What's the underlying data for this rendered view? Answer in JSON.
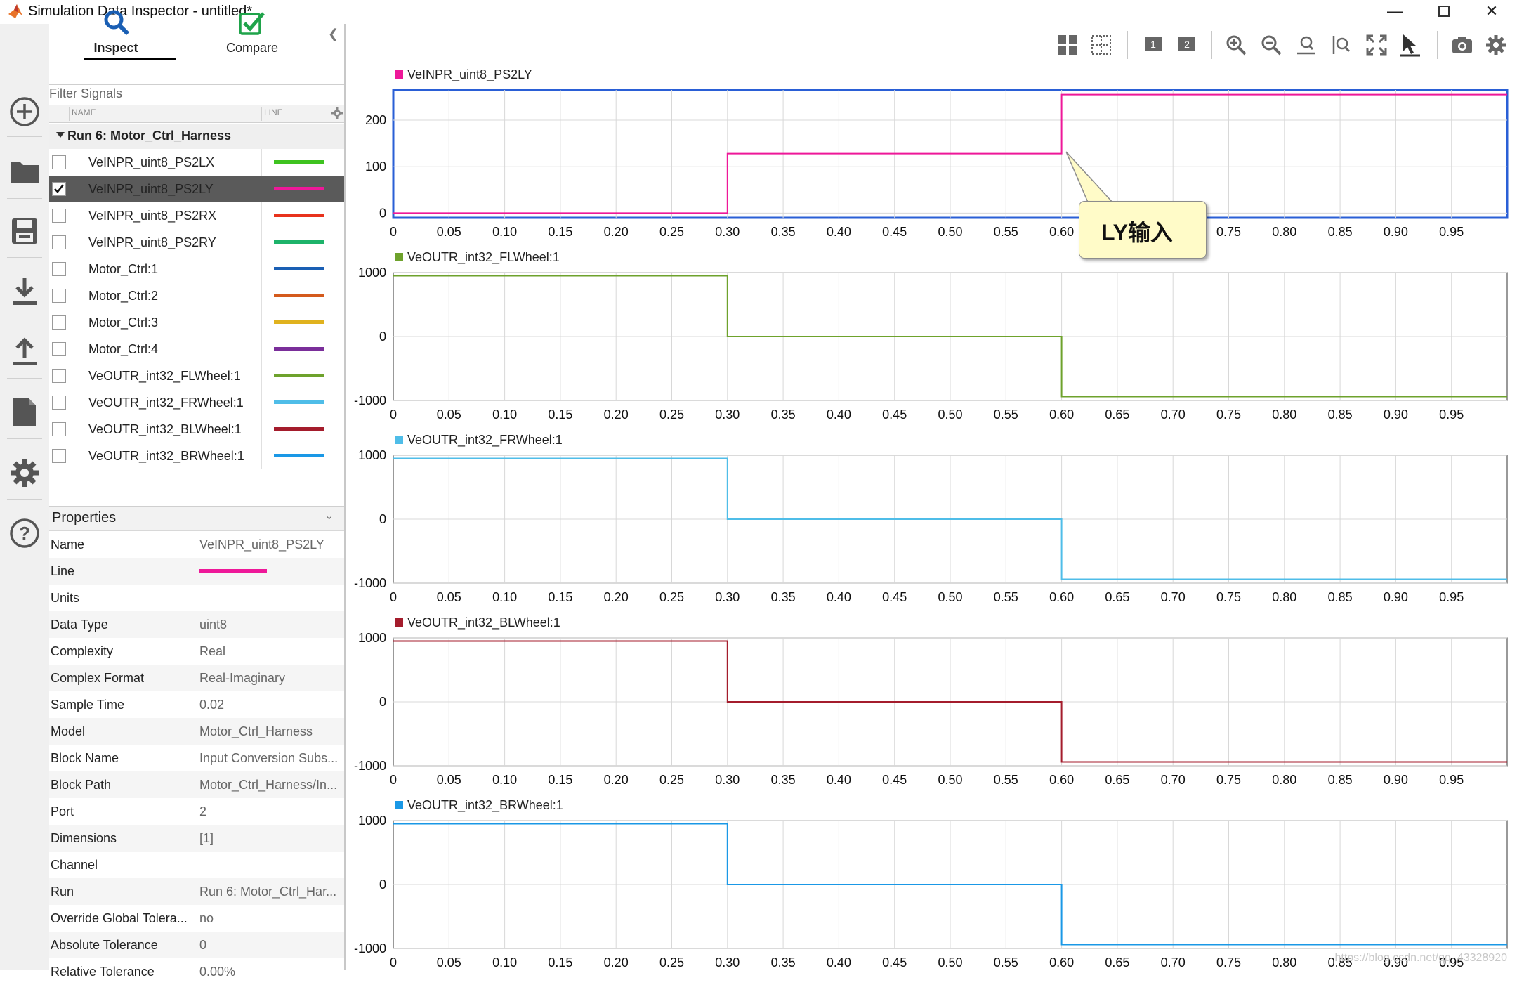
{
  "window": {
    "title": "Simulation Data Inspector - untitled*"
  },
  "tabs": {
    "inspect": "Inspect",
    "compare": "Compare"
  },
  "browser": {
    "filter_placeholder": "Filter Signals",
    "col_name": "NAME",
    "col_line": "LINE",
    "run_label": "Run 6: Motor_Ctrl_Harness",
    "signals": [
      {
        "name": "VeINPR_uint8_PS2LX",
        "color": "#3ec320",
        "checked": false,
        "selected": false
      },
      {
        "name": "VeINPR_uint8_PS2LY",
        "color": "#ee1899",
        "checked": true,
        "selected": true
      },
      {
        "name": "VeINPR_uint8_PS2RX",
        "color": "#e8321c",
        "checked": false,
        "selected": false
      },
      {
        "name": "VeINPR_uint8_PS2RY",
        "color": "#1db36a",
        "checked": false,
        "selected": false
      },
      {
        "name": "Motor_Ctrl:1",
        "color": "#1a5fb4",
        "checked": false,
        "selected": false
      },
      {
        "name": "Motor_Ctrl:2",
        "color": "#d45a1c",
        "checked": false,
        "selected": false
      },
      {
        "name": "Motor_Ctrl:3",
        "color": "#e0b21e",
        "checked": false,
        "selected": false
      },
      {
        "name": "Motor_Ctrl:4",
        "color": "#7a2e9a",
        "checked": false,
        "selected": false
      },
      {
        "name": "VeOUTR_int32_FLWheel:1",
        "color": "#6ea22c",
        "checked": false,
        "selected": false
      },
      {
        "name": "VeOUTR_int32_FRWheel:1",
        "color": "#4fbde8",
        "checked": false,
        "selected": false
      },
      {
        "name": "VeOUTR_int32_BLWheel:1",
        "color": "#a41c2c",
        "checked": false,
        "selected": false
      },
      {
        "name": "VeOUTR_int32_BRWheel:1",
        "color": "#1a98e6",
        "checked": false,
        "selected": false
      }
    ]
  },
  "properties": {
    "title": "Properties",
    "line_color": "#ee1899",
    "rows": [
      {
        "name": "Name",
        "value": "VeINPR_uint8_PS2LY"
      },
      {
        "name": "Line",
        "value": ""
      },
      {
        "name": "Units",
        "value": ""
      },
      {
        "name": "Data Type",
        "value": "uint8"
      },
      {
        "name": "Complexity",
        "value": "Real"
      },
      {
        "name": "Complex Format",
        "value": "Real-Imaginary"
      },
      {
        "name": "Sample Time",
        "value": "0.02"
      },
      {
        "name": "Model",
        "value": "Motor_Ctrl_Harness"
      },
      {
        "name": "Block Name",
        "value": "Input Conversion Subs..."
      },
      {
        "name": "Block Path",
        "value": "Motor_Ctrl_Harness/In..."
      },
      {
        "name": "Port",
        "value": "2"
      },
      {
        "name": "Dimensions",
        "value": "[1]"
      },
      {
        "name": "Channel",
        "value": ""
      },
      {
        "name": "Run",
        "value": "Run 6: Motor_Ctrl_Har..."
      },
      {
        "name": "Override Global Tolera...",
        "value": "no"
      },
      {
        "name": "Absolute Tolerance",
        "value": "0"
      },
      {
        "name": "Relative Tolerance",
        "value": "0.00%"
      }
    ]
  },
  "callout": {
    "text": "LY输入"
  },
  "watermark": "https://blog.csdn.net/qq_43328920",
  "chart_data": [
    {
      "type": "line",
      "title": "VeINPR_uint8_PS2LY",
      "color": "#ee1899",
      "selected": true,
      "ylim": [
        -10,
        265
      ],
      "yticks": [
        0,
        100,
        200
      ],
      "xlim": [
        0,
        1.0
      ],
      "xticks": [
        "0",
        "0.05",
        "0.10",
        "0.15",
        "0.20",
        "0.25",
        "0.30",
        "0.35",
        "0.40",
        "0.45",
        "0.50",
        "0.55",
        "0.60",
        "0.65",
        "0.70",
        "0.75",
        "0.80",
        "0.85",
        "0.90",
        "0.95"
      ],
      "step": {
        "x": [
          0,
          0.3,
          0.3,
          0.6,
          0.6,
          1.0
        ],
        "y": [
          0,
          0,
          128,
          128,
          255,
          255
        ]
      }
    },
    {
      "type": "line",
      "title": "VeOUTR_int32_FLWheel:1",
      "color": "#6ea22c",
      "selected": false,
      "ylim": [
        -1000,
        1000
      ],
      "yticks": [
        -1000,
        0,
        1000
      ],
      "ylabels": [
        "-1000",
        "0",
        "1000"
      ],
      "xlim": [
        0,
        1.0
      ],
      "xticks": [
        "0",
        "0.05",
        "0.10",
        "0.15",
        "0.20",
        "0.25",
        "0.30",
        "0.35",
        "0.40",
        "0.45",
        "0.50",
        "0.55",
        "0.60",
        "0.65",
        "0.70",
        "0.75",
        "0.80",
        "0.85",
        "0.90",
        "0.95"
      ],
      "step": {
        "x": [
          0,
          0.3,
          0.3,
          0.6,
          0.6,
          1.0
        ],
        "y": [
          950,
          950,
          0,
          0,
          -940,
          -940
        ]
      }
    },
    {
      "type": "line",
      "title": "VeOUTR_int32_FRWheel:1",
      "color": "#4fbde8",
      "selected": false,
      "ylim": [
        -1000,
        1000
      ],
      "yticks": [
        -1000,
        0,
        1000
      ],
      "ylabels": [
        "-1000",
        "0",
        "1000"
      ],
      "xlim": [
        0,
        1.0
      ],
      "xticks": [
        "0",
        "0.05",
        "0.10",
        "0.15",
        "0.20",
        "0.25",
        "0.30",
        "0.35",
        "0.40",
        "0.45",
        "0.50",
        "0.55",
        "0.60",
        "0.65",
        "0.70",
        "0.75",
        "0.80",
        "0.85",
        "0.90",
        "0.95"
      ],
      "step": {
        "x": [
          0,
          0.3,
          0.3,
          0.6,
          0.6,
          1.0
        ],
        "y": [
          950,
          950,
          0,
          0,
          -940,
          -940
        ]
      }
    },
    {
      "type": "line",
      "title": "VeOUTR_int32_BLWheel:1",
      "color": "#a41c2c",
      "selected": false,
      "ylim": [
        -1000,
        1000
      ],
      "yticks": [
        -1000,
        0,
        1000
      ],
      "ylabels": [
        "-1000",
        "0",
        "1000"
      ],
      "xlim": [
        0,
        1.0
      ],
      "xticks": [
        "0",
        "0.05",
        "0.10",
        "0.15",
        "0.20",
        "0.25",
        "0.30",
        "0.35",
        "0.40",
        "0.45",
        "0.50",
        "0.55",
        "0.60",
        "0.65",
        "0.70",
        "0.75",
        "0.80",
        "0.85",
        "0.90",
        "0.95"
      ],
      "step": {
        "x": [
          0,
          0.3,
          0.3,
          0.6,
          0.6,
          1.0
        ],
        "y": [
          950,
          950,
          0,
          0,
          -940,
          -940
        ]
      }
    },
    {
      "type": "line",
      "title": "VeOUTR_int32_BRWheel:1",
      "color": "#1a98e6",
      "selected": false,
      "ylim": [
        -1000,
        1000
      ],
      "yticks": [
        -1000,
        0,
        1000
      ],
      "ylabels": [
        "-1000",
        "0",
        "1000"
      ],
      "xlim": [
        0,
        1.0
      ],
      "xticks": [
        "0",
        "0.05",
        "0.10",
        "0.15",
        "0.20",
        "0.25",
        "0.30",
        "0.35",
        "0.40",
        "0.45",
        "0.50",
        "0.55",
        "0.60",
        "0.65",
        "0.70",
        "0.75",
        "0.80",
        "0.85",
        "0.90",
        "0.95"
      ],
      "step": {
        "x": [
          0,
          0.3,
          0.3,
          0.6,
          0.6,
          1.0
        ],
        "y": [
          950,
          950,
          0,
          0,
          -940,
          -940
        ]
      }
    }
  ]
}
